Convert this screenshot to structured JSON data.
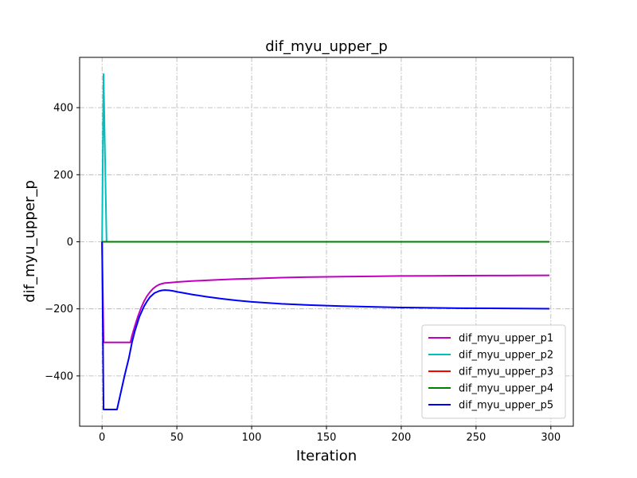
{
  "chart_data": {
    "type": "line",
    "title": "dif_myu_upper_p",
    "xlabel": "Iteration",
    "ylabel": "dif_myu_upper_p",
    "xlim": [
      -15,
      315
    ],
    "ylim": [
      -550,
      550
    ],
    "xticks": [
      0,
      50,
      100,
      150,
      200,
      250,
      300
    ],
    "yticks": [
      -400,
      -200,
      0,
      200,
      400
    ],
    "grid": true,
    "legend_position": "lower right",
    "series": [
      {
        "name": "dif_myu_upper_p1",
        "color": "#bf00bf",
        "x": [
          0,
          1,
          2,
          5,
          10,
          15,
          19,
          20,
          22,
          24,
          26,
          28,
          30,
          32,
          34,
          36,
          38,
          40,
          42,
          45,
          50,
          60,
          70,
          80,
          90,
          100,
          120,
          140,
          160,
          180,
          200,
          220,
          240,
          260,
          280,
          299
        ],
        "y": [
          0,
          -300,
          -300,
          -300,
          -300,
          -300,
          -300,
          -280,
          -250,
          -222,
          -198,
          -178,
          -162,
          -150,
          -140,
          -133,
          -128,
          -125,
          -123,
          -122,
          -120,
          -117,
          -115,
          -113,
          -111,
          -110,
          -107,
          -105,
          -104,
          -103,
          -102,
          -101.5,
          -101,
          -100.8,
          -100.4,
          -100
        ]
      },
      {
        "name": "dif_myu_upper_p2",
        "color": "#00bfbf",
        "x": [
          0,
          1,
          2,
          3,
          5,
          50,
          100,
          150,
          200,
          250,
          299
        ],
        "y": [
          0,
          500,
          250,
          0,
          0,
          0,
          0,
          0,
          0,
          0,
          0
        ]
      },
      {
        "name": "dif_myu_upper_p3",
        "color": "#ff0000",
        "x": [
          0,
          1,
          2,
          50,
          100,
          150,
          200,
          250,
          299
        ],
        "y": [
          0,
          0,
          0,
          0,
          0,
          0,
          0,
          0,
          0
        ]
      },
      {
        "name": "dif_myu_upper_p4",
        "color": "#008000",
        "x": [
          0,
          1,
          2,
          50,
          100,
          150,
          200,
          250,
          299
        ],
        "y": [
          0,
          0,
          0,
          0,
          0,
          0,
          0,
          0,
          0
        ]
      },
      {
        "name": "dif_myu_upper_p5",
        "color": "#0000ff",
        "x": [
          0,
          1,
          2,
          5,
          10,
          12,
          15,
          18,
          20,
          22,
          25,
          28,
          30,
          32,
          35,
          38,
          40,
          42,
          45,
          48,
          50,
          55,
          60,
          70,
          80,
          90,
          100,
          120,
          140,
          160,
          180,
          200,
          220,
          240,
          260,
          280,
          299
        ],
        "y": [
          0,
          -500,
          -500,
          -500,
          -500,
          -460,
          -400,
          -345,
          -300,
          -265,
          -223,
          -193,
          -178,
          -165,
          -153,
          -147,
          -145,
          -144,
          -145,
          -147,
          -149,
          -153,
          -157,
          -164,
          -170,
          -175,
          -179,
          -185,
          -189,
          -192,
          -194,
          -196,
          -197,
          -198,
          -198.5,
          -199,
          -199.5
        ]
      }
    ]
  }
}
